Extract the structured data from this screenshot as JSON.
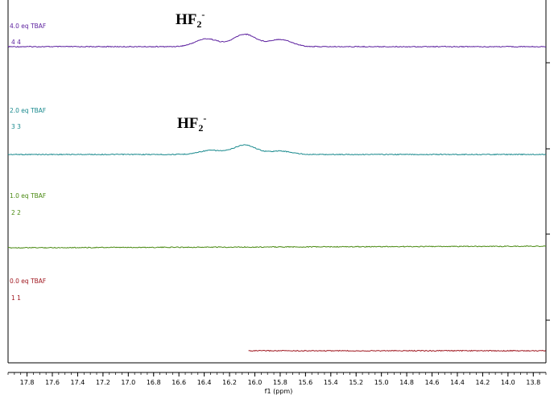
{
  "chart_data": {
    "type": "line",
    "title": "",
    "xlabel": "f1 (ppm)",
    "ylabel": "",
    "xlim": [
      17.95,
      13.7
    ],
    "x_reversed": true,
    "x_ticks": [
      "17.8",
      "17.6",
      "17.4",
      "17.2",
      "17.0",
      "16.8",
      "16.6",
      "16.4",
      "16.2",
      "16.0",
      "15.8",
      "15.6",
      "15.4",
      "15.2",
      "15.0",
      "14.8",
      "14.6",
      "14.4",
      "14.2",
      "14.0",
      "13.8"
    ],
    "grid": false,
    "right_axis_ticks": 4,
    "series": [
      {
        "name": "4.0 eq TBAF",
        "trace_id": "4 4",
        "color": "#5b1f9e",
        "x_range": [
          17.95,
          13.7
        ],
        "peaks": [
          {
            "ppm": 16.38,
            "height": 0.35
          },
          {
            "ppm": 16.08,
            "height": 0.55
          },
          {
            "ppm": 15.8,
            "height": 0.32
          }
        ],
        "annotation": {
          "main": "HF",
          "sub": "2",
          "sup": "-"
        }
      },
      {
        "name": "2.0 eq TBAF",
        "trace_id": "3 3",
        "color": "#1a8a8e",
        "x_range": [
          17.95,
          13.7
        ],
        "peaks": [
          {
            "ppm": 16.08,
            "height": 0.42
          },
          {
            "ppm": 16.35,
            "height": 0.18
          },
          {
            "ppm": 15.8,
            "height": 0.15
          }
        ],
        "annotation": {
          "main": "HF",
          "sub": "2",
          "sup": "-"
        }
      },
      {
        "name": "1.0 eq TBAF",
        "trace_id": "2 2",
        "color": "#4a8a12",
        "x_range": [
          17.95,
          13.7
        ],
        "peaks": []
      },
      {
        "name": "0.0 eq TBAF",
        "trace_id": "1 1",
        "color": "#a01820",
        "x_range": [
          16.05,
          13.7
        ],
        "peaks": []
      }
    ]
  }
}
